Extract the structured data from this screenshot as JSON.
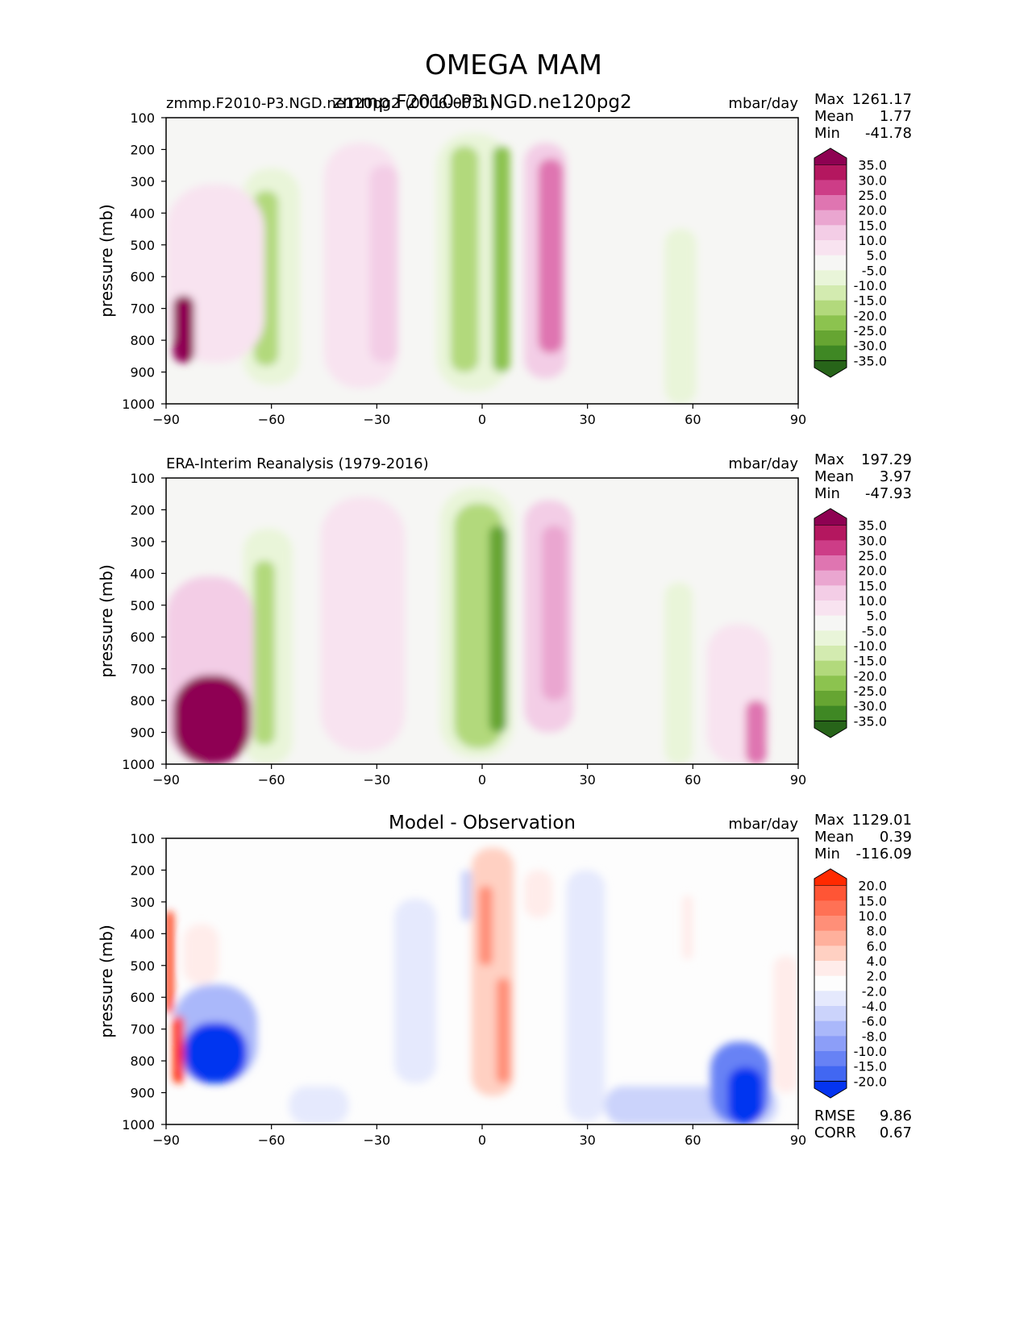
{
  "figure": {
    "title": "OMEGA MAM"
  },
  "chart_data": [
    {
      "type": "heatmap",
      "panel": "model",
      "title_left": "zmmp.F2010-P3.NGD.ne120pg2 (0006-0011)",
      "title_center": "zmmp.F2010-P3.NGD.ne120pg2",
      "units": "mbar/day",
      "ylabel": "pressure (mb)",
      "xlabel": "",
      "xlim": [
        -90,
        90
      ],
      "ylim": [
        100,
        1000
      ],
      "xticks": [
        "−90",
        "−60",
        "−30",
        "0",
        "30",
        "60",
        "90"
      ],
      "yticks": [
        "100",
        "200",
        "300",
        "400",
        "500",
        "600",
        "700",
        "800",
        "900",
        "1000"
      ],
      "stats": [
        {
          "label": "Max",
          "value": "1261.17"
        },
        {
          "label": "Mean",
          "value": "1.77"
        },
        {
          "label": "Min",
          "value": "-41.78"
        }
      ],
      "colorbar_levels": [
        "35.0",
        "30.0",
        "25.0",
        "20.0",
        "15.0",
        "10.0",
        "5.0",
        "-5.0",
        "-10.0",
        "-15.0",
        "-20.0",
        "-25.0",
        "-30.0",
        "-35.0"
      ],
      "colorbar_colors": [
        "#8e0152",
        "#b4175f",
        "#cd3d87",
        "#df75b1",
        "#eaa6d0",
        "#f3cde6",
        "#f8e3f0",
        "#f6f6f4",
        "#e9f5d9",
        "#d3ebb0",
        "#b2d97c",
        "#8cc34f",
        "#66a532",
        "#3f8824",
        "#276419"
      ],
      "features": [
        {
          "lat_min": -45,
          "lat_max": -24,
          "p_top": 180,
          "p_bot": 950,
          "value": 8
        },
        {
          "lat_min": -32,
          "lat_max": -24,
          "p_top": 250,
          "p_bot": 870,
          "value": 12
        },
        {
          "lat_min": 12,
          "lat_max": 24,
          "p_top": 180,
          "p_bot": 920,
          "value": 14
        },
        {
          "lat_min": 16,
          "lat_max": 23,
          "p_top": 230,
          "p_bot": 840,
          "value": 20
        },
        {
          "lat_min": -13,
          "lat_max": 8,
          "p_top": 150,
          "p_bot": 960,
          "value": -8
        },
        {
          "lat_min": -9,
          "lat_max": -1,
          "p_top": 190,
          "p_bot": 900,
          "value": -20
        },
        {
          "lat_min": 3,
          "lat_max": 8,
          "p_top": 190,
          "p_bot": 900,
          "value": -22
        },
        {
          "lat_min": -68,
          "lat_max": -52,
          "p_top": 260,
          "p_bot": 940,
          "value": -8
        },
        {
          "lat_min": -65,
          "lat_max": -58,
          "p_top": 330,
          "p_bot": 880,
          "value": -17
        },
        {
          "lat_min": 52,
          "lat_max": 61,
          "p_top": 450,
          "p_bot": 1000,
          "value": -7
        },
        {
          "lat_min": -90,
          "lat_max": -62,
          "p_top": 310,
          "p_bot": 870,
          "value": 9
        },
        {
          "lat_min": -88,
          "lat_max": -82,
          "p_top": 660,
          "p_bot": 870,
          "value": 45
        }
      ]
    },
    {
      "type": "heatmap",
      "panel": "reference",
      "title_left": "ERA-Interim Reanalysis (1979-2016)",
      "title_center": "",
      "units": "mbar/day",
      "ylabel": "pressure (mb)",
      "xlabel": "",
      "xlim": [
        -90,
        90
      ],
      "ylim": [
        100,
        1000
      ],
      "xticks": [
        "−90",
        "−60",
        "−30",
        "0",
        "30",
        "60",
        "90"
      ],
      "yticks": [
        "100",
        "200",
        "300",
        "400",
        "500",
        "600",
        "700",
        "800",
        "900",
        "1000"
      ],
      "stats": [
        {
          "label": "Max",
          "value": "197.29"
        },
        {
          "label": "Mean",
          "value": "3.97"
        },
        {
          "label": "Min",
          "value": "-47.93"
        }
      ],
      "colorbar_levels": [
        "35.0",
        "30.0",
        "25.0",
        "20.0",
        "15.0",
        "10.0",
        "5.0",
        "-5.0",
        "-10.0",
        "-15.0",
        "-20.0",
        "-25.0",
        "-30.0",
        "-35.0"
      ],
      "colorbar_colors": [
        "#8e0152",
        "#b4175f",
        "#cd3d87",
        "#df75b1",
        "#eaa6d0",
        "#f3cde6",
        "#f8e3f0",
        "#f6f6f4",
        "#e9f5d9",
        "#d3ebb0",
        "#b2d97c",
        "#8cc34f",
        "#66a532",
        "#3f8824",
        "#276419"
      ],
      "features": [
        {
          "lat_min": -46,
          "lat_max": -22,
          "p_top": 160,
          "p_bot": 960,
          "value": 8
        },
        {
          "lat_min": 12,
          "lat_max": 26,
          "p_top": 170,
          "p_bot": 900,
          "value": 13
        },
        {
          "lat_min": 17,
          "lat_max": 24,
          "p_top": 250,
          "p_bot": 800,
          "value": 19
        },
        {
          "lat_min": -12,
          "lat_max": 9,
          "p_top": 130,
          "p_bot": 980,
          "value": -10
        },
        {
          "lat_min": -8,
          "lat_max": 6,
          "p_top": 180,
          "p_bot": 950,
          "value": -17
        },
        {
          "lat_min": 2,
          "lat_max": 7,
          "p_top": 250,
          "p_bot": 900,
          "value": -28
        },
        {
          "lat_min": -68,
          "lat_max": -54,
          "p_top": 260,
          "p_bot": 1000,
          "value": -8
        },
        {
          "lat_min": -65,
          "lat_max": -59,
          "p_top": 360,
          "p_bot": 940,
          "value": -17
        },
        {
          "lat_min": 52,
          "lat_max": 60,
          "p_top": 430,
          "p_bot": 1000,
          "value": -7
        },
        {
          "lat_min": -90,
          "lat_max": -65,
          "p_top": 410,
          "p_bot": 1000,
          "value": 12
        },
        {
          "lat_min": -88,
          "lat_max": -66,
          "p_top": 720,
          "p_bot": 1000,
          "value": 40
        },
        {
          "lat_min": 64,
          "lat_max": 82,
          "p_top": 560,
          "p_bot": 1000,
          "value": 9
        },
        {
          "lat_min": 75,
          "lat_max": 81,
          "p_top": 800,
          "p_bot": 1000,
          "value": 22
        }
      ]
    },
    {
      "type": "heatmap",
      "panel": "difference",
      "title_left": "",
      "title_center": "Model - Observation",
      "units": "mbar/day",
      "ylabel": "pressure (mb)",
      "xlabel": "",
      "xlim": [
        -90,
        90
      ],
      "ylim": [
        100,
        1000
      ],
      "xticks": [
        "−90",
        "−60",
        "−30",
        "0",
        "30",
        "60",
        "90"
      ],
      "yticks": [
        "100",
        "200",
        "300",
        "400",
        "500",
        "600",
        "700",
        "800",
        "900",
        "1000"
      ],
      "stats": [
        {
          "label": "Max",
          "value": "1129.01"
        },
        {
          "label": "Mean",
          "value": "0.39"
        },
        {
          "label": "Min",
          "value": "-116.09"
        }
      ],
      "extra_stats": [
        {
          "label": "RMSE",
          "value": "9.86"
        },
        {
          "label": "CORR",
          "value": "0.67"
        }
      ],
      "colorbar_levels": [
        "20.0",
        "15.0",
        "10.0",
        "8.0",
        "6.0",
        "4.0",
        "2.0",
        "-2.0",
        "-4.0",
        "-6.0",
        "-8.0",
        "-10.0",
        "-15.0",
        "-20.0"
      ],
      "colorbar_colors": [
        "#ff2a00",
        "#ff5535",
        "#ff7155",
        "#ff8f78",
        "#ffb09c",
        "#ffd0c2",
        "#ffecea",
        "#fdfdfd",
        "#e5e9fd",
        "#cbd3fb",
        "#aab8fa",
        "#8c9ef8",
        "#6782f5",
        "#4167f2",
        "#0434f0"
      ],
      "features": [
        {
          "lat_min": -3,
          "lat_max": 9,
          "p_top": 130,
          "p_bot": 910,
          "value": 5
        },
        {
          "lat_min": -1,
          "lat_max": 3,
          "p_top": 250,
          "p_bot": 500,
          "value": 9
        },
        {
          "lat_min": 4,
          "lat_max": 8,
          "p_top": 540,
          "p_bot": 870,
          "value": 8
        },
        {
          "lat_min": -6,
          "lat_max": -3,
          "p_top": 200,
          "p_bot": 360,
          "value": -5
        },
        {
          "lat_min": 12,
          "lat_max": 20,
          "p_top": 200,
          "p_bot": 350,
          "value": 3
        },
        {
          "lat_min": -25,
          "lat_max": -13,
          "p_top": 290,
          "p_bot": 870,
          "value": -3
        },
        {
          "lat_min": 24,
          "lat_max": 35,
          "p_top": 200,
          "p_bot": 990,
          "value": -3
        },
        {
          "lat_min": 57,
          "lat_max": 60,
          "p_top": 280,
          "p_bot": 480,
          "value": 2.5
        },
        {
          "lat_min": -55,
          "lat_max": -38,
          "p_top": 880,
          "p_bot": 1000,
          "value": -3
        },
        {
          "lat_min": 35,
          "lat_max": 84,
          "p_top": 880,
          "p_bot": 1000,
          "value": -5
        },
        {
          "lat_min": 65,
          "lat_max": 82,
          "p_top": 740,
          "p_bot": 1000,
          "value": -12
        },
        {
          "lat_min": 70,
          "lat_max": 80,
          "p_top": 820,
          "p_bot": 1000,
          "value": -25
        },
        {
          "lat_min": 83,
          "lat_max": 90,
          "p_top": 470,
          "p_bot": 900,
          "value": 2.5
        },
        {
          "lat_min": -88,
          "lat_max": -64,
          "p_top": 560,
          "p_bot": 870,
          "value": -7
        },
        {
          "lat_min": -85,
          "lat_max": -67,
          "p_top": 680,
          "p_bot": 870,
          "value": -25
        },
        {
          "lat_min": -88,
          "lat_max": -85,
          "p_top": 660,
          "p_bot": 870,
          "value": 25
        },
        {
          "lat_min": -90,
          "lat_max": -88,
          "p_top": 330,
          "p_bot": 650,
          "value": 22
        },
        {
          "lat_min": -85,
          "lat_max": -75,
          "p_top": 370,
          "p_bot": 560,
          "value": 3
        }
      ]
    }
  ]
}
